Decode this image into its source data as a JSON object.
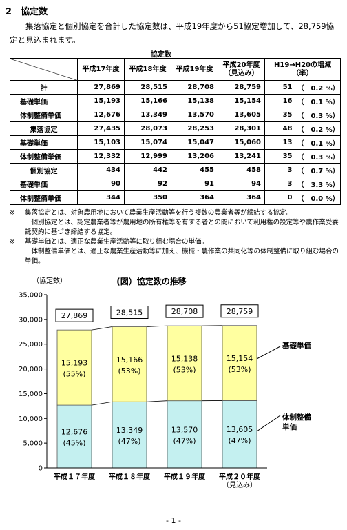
{
  "heading": {
    "number": "2",
    "title": "協定数"
  },
  "intro": "集落協定と個別協定を合計した協定数は、平成19年度から51協定増加して、28,759協定と見込まれます。",
  "table": {
    "caption": "協定数",
    "columns": [
      {
        "label": "平成17年度"
      },
      {
        "label": "平成18年度"
      },
      {
        "label": "平成19年度"
      },
      {
        "label": "平成20年度",
        "note": "（見込み）"
      },
      {
        "label": "H19→H20の増減",
        "note": "（率）"
      }
    ],
    "groups": [
      {
        "label": "計",
        "values": [
          "27,869",
          "28,515",
          "28,708",
          "28,759"
        ],
        "change": "51",
        "rate": "（　0.2 %）",
        "children": [
          {
            "label": "基礎単価",
            "values": [
              "15,193",
              "15,166",
              "15,138",
              "15,154"
            ],
            "change": "16",
            "rate": "（　0.1 %）"
          },
          {
            "label": "体制整備単価",
            "values": [
              "12,676",
              "13,349",
              "13,570",
              "13,605"
            ],
            "change": "35",
            "rate": "（　0.3 %）"
          }
        ]
      },
      {
        "label": "集落協定",
        "values": [
          "27,435",
          "28,073",
          "28,253",
          "28,301"
        ],
        "change": "48",
        "rate": "（　0.2 %）",
        "children": [
          {
            "label": "基礎単価",
            "values": [
              "15,103",
              "15,074",
              "15,047",
              "15,060"
            ],
            "change": "13",
            "rate": "（　0.1 %）"
          },
          {
            "label": "体制整備単価",
            "values": [
              "12,332",
              "12,999",
              "13,206",
              "13,241"
            ],
            "change": "35",
            "rate": "（　0.3 %）"
          }
        ]
      },
      {
        "label": "個別協定",
        "values": [
          "434",
          "442",
          "455",
          "458"
        ],
        "change": "3",
        "rate": "（　0.7 %）",
        "children": [
          {
            "label": "基礎単価",
            "values": [
              "90",
              "92",
              "91",
              "94"
            ],
            "change": "3",
            "rate": "（　3.3 %）"
          },
          {
            "label": "体制整備単価",
            "values": [
              "344",
              "350",
              "364",
              "364"
            ],
            "change": "0",
            "rate": "（　0.0 %）"
          }
        ]
      }
    ]
  },
  "notes": [
    {
      "marker": "※",
      "paragraphs": [
        "集落協定とは、対象農用地において農業生産活動等を行う複数の農業者等が締結する協定。",
        "個別協定とは、認定農業者等が農用地の所有権等を有する者との間において利用権の設定等や農作業受委託契約に基づき締結する協定。"
      ]
    },
    {
      "marker": "※",
      "paragraphs": [
        "基礎単価とは、適正な農業生産活動等に取り組む場合の単価。",
        "体制整備単価とは、適正な農業生産活動等に加え、機械・農作業の共同化等の体制整備に取り組む場合の単価。"
      ]
    }
  ],
  "chart_data": {
    "type": "bar",
    "stacked": true,
    "title": "(図）協定数の推移",
    "y_label": "（協定数）",
    "categories": [
      "平成１７年度",
      "平成１８年度",
      "平成１９年度",
      "平成２０年度"
    ],
    "category_notes": [
      null,
      null,
      null,
      "（見込み）"
    ],
    "series": [
      {
        "name": "体制整備単価",
        "color": "#c4f0f0",
        "values": [
          12676,
          13349,
          13570,
          13605
        ],
        "value_labels": [
          "12,676",
          "13,349",
          "13,570",
          "13,605"
        ],
        "share_labels": [
          "(45%)",
          "(47%)",
          "(47%)",
          "(47%)"
        ]
      },
      {
        "name": "基礎単価",
        "color": "#ffffa0",
        "values": [
          15193,
          15166,
          15138,
          15154
        ],
        "value_labels": [
          "15,193",
          "15,166",
          "15,138",
          "15,154"
        ],
        "share_labels": [
          "(55%)",
          "(53%)",
          "(53%)",
          "(53%)"
        ]
      }
    ],
    "totals": [
      27869,
      28515,
      28708,
      28759
    ],
    "total_labels": [
      "27,869",
      "28,515",
      "28,708",
      "28,759"
    ],
    "ylim": [
      0,
      35000
    ],
    "yticks": [
      0,
      {
        "value": 5000,
        "label": "5,000"
      },
      {
        "value": 10000,
        "label": "10,000"
      },
      {
        "value": 15000,
        "label": "15,000"
      },
      {
        "value": 20000,
        "label": "20,000"
      },
      {
        "value": 25000,
        "label": "25,000"
      },
      {
        "value": 30000,
        "label": "30,000"
      },
      {
        "value": 35000,
        "label": "35,000"
      }
    ]
  },
  "footer": "- 1 -"
}
